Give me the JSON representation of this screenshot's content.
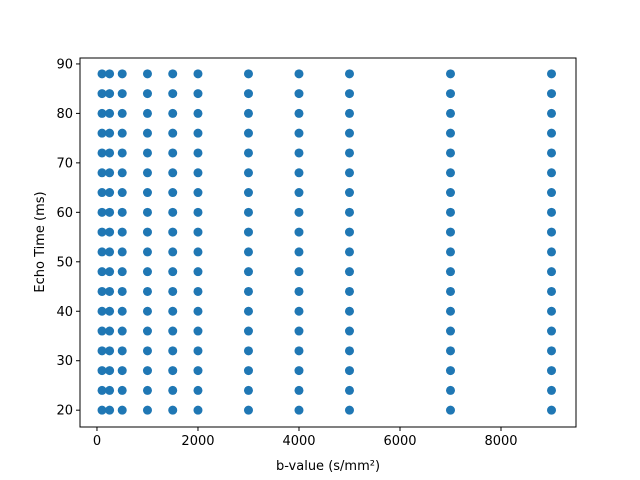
{
  "chart_data": {
    "type": "scatter",
    "xlabel": "b-value (s/mm²)",
    "ylabel": "Echo Time (ms)",
    "xlim": [
      -336,
      9485
    ],
    "ylim": [
      16.6,
      91.2
    ],
    "xticks": [
      0,
      2000,
      4000,
      6000,
      8000
    ],
    "yticks": [
      20,
      30,
      40,
      50,
      60,
      70,
      80,
      90
    ],
    "series": [
      {
        "color": "#1f77b4",
        "x": [
          100,
          100,
          100,
          100,
          100,
          100,
          100,
          100,
          100,
          100,
          100,
          100,
          100,
          100,
          100,
          100,
          100,
          100,
          250,
          250,
          250,
          250,
          250,
          250,
          250,
          250,
          250,
          250,
          250,
          250,
          250,
          250,
          250,
          250,
          250,
          250,
          500,
          500,
          500,
          500,
          500,
          500,
          500,
          500,
          500,
          500,
          500,
          500,
          500,
          500,
          500,
          500,
          500,
          500,
          1000,
          1000,
          1000,
          1000,
          1000,
          1000,
          1000,
          1000,
          1000,
          1000,
          1000,
          1000,
          1000,
          1000,
          1000,
          1000,
          1000,
          1000,
          1500,
          1500,
          1500,
          1500,
          1500,
          1500,
          1500,
          1500,
          1500,
          1500,
          1500,
          1500,
          1500,
          1500,
          1500,
          1500,
          1500,
          1500,
          2000,
          2000,
          2000,
          2000,
          2000,
          2000,
          2000,
          2000,
          2000,
          2000,
          2000,
          2000,
          2000,
          2000,
          2000,
          2000,
          2000,
          2000,
          3000,
          3000,
          3000,
          3000,
          3000,
          3000,
          3000,
          3000,
          3000,
          3000,
          3000,
          3000,
          3000,
          3000,
          3000,
          3000,
          3000,
          3000,
          4000,
          4000,
          4000,
          4000,
          4000,
          4000,
          4000,
          4000,
          4000,
          4000,
          4000,
          4000,
          4000,
          4000,
          4000,
          4000,
          4000,
          4000,
          5000,
          5000,
          5000,
          5000,
          5000,
          5000,
          5000,
          5000,
          5000,
          5000,
          5000,
          5000,
          5000,
          5000,
          5000,
          5000,
          5000,
          5000,
          7000,
          7000,
          7000,
          7000,
          7000,
          7000,
          7000,
          7000,
          7000,
          7000,
          7000,
          7000,
          7000,
          7000,
          7000,
          7000,
          7000,
          7000,
          9000,
          9000,
          9000,
          9000,
          9000,
          9000,
          9000,
          9000,
          9000,
          9000,
          9000,
          9000,
          9000,
          9000,
          9000,
          9000,
          9000,
          9000
        ],
        "y": [
          20,
          24,
          28,
          32,
          36,
          40,
          44,
          48,
          52,
          56,
          60,
          64,
          68,
          72,
          76,
          80,
          84,
          88,
          20,
          24,
          28,
          32,
          36,
          40,
          44,
          48,
          52,
          56,
          60,
          64,
          68,
          72,
          76,
          80,
          84,
          88,
          20,
          24,
          28,
          32,
          36,
          40,
          44,
          48,
          52,
          56,
          60,
          64,
          68,
          72,
          76,
          80,
          84,
          88,
          20,
          24,
          28,
          32,
          36,
          40,
          44,
          48,
          52,
          56,
          60,
          64,
          68,
          72,
          76,
          80,
          84,
          88,
          20,
          24,
          28,
          32,
          36,
          40,
          44,
          48,
          52,
          56,
          60,
          64,
          68,
          72,
          76,
          80,
          84,
          88,
          20,
          24,
          28,
          32,
          36,
          40,
          44,
          48,
          52,
          56,
          60,
          64,
          68,
          72,
          76,
          80,
          84,
          88,
          20,
          24,
          28,
          32,
          36,
          40,
          44,
          48,
          52,
          56,
          60,
          64,
          68,
          72,
          76,
          80,
          84,
          88,
          20,
          24,
          28,
          32,
          36,
          40,
          44,
          48,
          52,
          56,
          60,
          64,
          68,
          72,
          76,
          80,
          84,
          88,
          20,
          24,
          28,
          32,
          36,
          40,
          44,
          48,
          52,
          56,
          60,
          64,
          68,
          72,
          76,
          80,
          84,
          88,
          20,
          24,
          28,
          32,
          36,
          40,
          44,
          48,
          52,
          56,
          60,
          64,
          68,
          72,
          76,
          80,
          84,
          88,
          20,
          24,
          28,
          32,
          36,
          40,
          44,
          48,
          52,
          56,
          60,
          64,
          68,
          72,
          76,
          80,
          84,
          88
        ]
      }
    ]
  }
}
